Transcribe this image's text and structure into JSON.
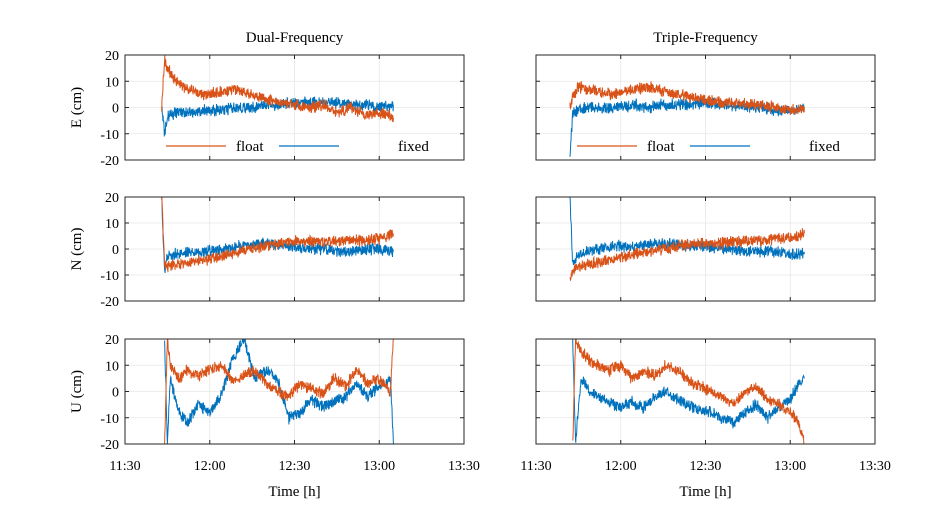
{
  "colors": {
    "float": "#D95319",
    "fixed": "#0072BD",
    "axis": "#262626",
    "grid": "#E6E6E6"
  },
  "chart_data": [
    {
      "type": "line",
      "panel": "dual-E",
      "title": "Dual-Frequency",
      "xlabel": "",
      "ylabel": "E (cm)",
      "xlim": [
        "11:30",
        "13:30"
      ],
      "ylim": [
        -20,
        20
      ],
      "xticks": [
        "11:30",
        "12:00",
        "12:30",
        "13:00",
        "13:30"
      ],
      "yticks": [
        "-20",
        "-10",
        "0",
        "10",
        "20"
      ],
      "grid": true,
      "legend": "bottom",
      "series": [
        {
          "name": "float",
          "x": [
            "11:43",
            "11:44",
            "11:45",
            "11:48",
            "11:52",
            "11:58",
            "12:05",
            "12:10",
            "12:15",
            "12:20",
            "12:25",
            "12:30",
            "12:35",
            "12:40",
            "12:45",
            "12:50",
            "12:55",
            "13:00",
            "13:05"
          ],
          "y": [
            0,
            18,
            15,
            10,
            7,
            5,
            6,
            7,
            5,
            3,
            2,
            1,
            0,
            1,
            -2,
            0,
            -3,
            -2,
            -4
          ]
        },
        {
          "name": "fixed",
          "x": [
            "11:43",
            "11:44",
            "11:45",
            "11:48",
            "11:52",
            "11:58",
            "12:05",
            "12:10",
            "12:15",
            "12:20",
            "12:25",
            "12:30",
            "12:35",
            "12:40",
            "12:45",
            "12:50",
            "12:55",
            "13:00",
            "13:05"
          ],
          "y": [
            0,
            -10,
            -3,
            -2,
            -2,
            -1,
            -1,
            0,
            0,
            1,
            1,
            2,
            2,
            2,
            2,
            1,
            1,
            0,
            1
          ]
        }
      ]
    },
    {
      "type": "line",
      "panel": "triple-E",
      "title": "Triple-Frequency",
      "xlabel": "",
      "ylabel": "",
      "xlim": [
        "11:30",
        "13:30"
      ],
      "ylim": [
        -20,
        20
      ],
      "xticks": [
        "11:30",
        "12:00",
        "12:30",
        "13:00",
        "13:30"
      ],
      "yticks": [],
      "grid": true,
      "legend": "bottom",
      "series": [
        {
          "name": "float",
          "x": [
            "11:42",
            "11:43",
            "11:45",
            "11:48",
            "11:52",
            "11:58",
            "12:05",
            "12:10",
            "12:15",
            "12:20",
            "12:25",
            "12:30",
            "12:35",
            "12:40",
            "12:45",
            "12:50",
            "12:55",
            "13:00",
            "13:05"
          ],
          "y": [
            0,
            4,
            8,
            7,
            6,
            5,
            7,
            8,
            6,
            5,
            4,
            3,
            2,
            2,
            1,
            1,
            0,
            -1,
            0
          ]
        },
        {
          "name": "fixed",
          "x": [
            "11:42",
            "11:43",
            "11:45",
            "11:48",
            "11:52",
            "11:58",
            "12:05",
            "12:10",
            "12:15",
            "12:20",
            "12:25",
            "12:30",
            "12:35",
            "12:40",
            "12:45",
            "12:50",
            "12:55",
            "13:00",
            "13:05"
          ],
          "y": [
            -20,
            -2,
            -1,
            0,
            0,
            0,
            1,
            0,
            1,
            1,
            1,
            2,
            1,
            1,
            0,
            0,
            -1,
            -1,
            0
          ]
        }
      ]
    },
    {
      "type": "line",
      "panel": "dual-N",
      "title": "",
      "xlabel": "",
      "ylabel": "N (cm)",
      "xlim": [
        "11:30",
        "13:30"
      ],
      "ylim": [
        -20,
        20
      ],
      "xticks": [
        "11:30",
        "12:00",
        "12:30",
        "13:00",
        "13:30"
      ],
      "yticks": [
        "-20",
        "-10",
        "0",
        "10",
        "20"
      ],
      "grid": true,
      "series": [
        {
          "name": "float",
          "x": [
            "11:43",
            "11:44",
            "11:45",
            "11:48",
            "11:52",
            "11:58",
            "12:05",
            "12:10",
            "12:15",
            "12:20",
            "12:25",
            "12:30",
            "12:35",
            "12:40",
            "12:45",
            "12:50",
            "12:55",
            "13:00",
            "13:05"
          ],
          "y": [
            20,
            -6,
            -7,
            -6,
            -5,
            -4,
            -3,
            -1,
            0,
            1,
            2,
            3,
            3,
            3,
            3,
            4,
            3,
            4,
            6
          ]
        },
        {
          "name": "fixed",
          "x": [
            "11:43",
            "11:44",
            "11:45",
            "11:48",
            "11:52",
            "11:58",
            "12:05",
            "12:10",
            "12:15",
            "12:20",
            "12:25",
            "12:30",
            "12:35",
            "12:40",
            "12:45",
            "12:50",
            "12:55",
            "13:00",
            "13:05"
          ],
          "y": [
            20,
            -8,
            -3,
            -2,
            -1,
            -1,
            0,
            1,
            2,
            2,
            1,
            1,
            0,
            0,
            -1,
            -1,
            0,
            0,
            -1
          ]
        }
      ]
    },
    {
      "type": "line",
      "panel": "triple-N",
      "title": "",
      "xlabel": "",
      "ylabel": "",
      "xlim": [
        "11:30",
        "13:30"
      ],
      "ylim": [
        -20,
        20
      ],
      "xticks": [
        "11:30",
        "12:00",
        "12:30",
        "13:00",
        "13:30"
      ],
      "yticks": [],
      "grid": true,
      "series": [
        {
          "name": "float",
          "x": [
            "11:42",
            "11:43",
            "11:45",
            "11:48",
            "11:52",
            "11:58",
            "12:05",
            "12:10",
            "12:15",
            "12:20",
            "12:25",
            "12:30",
            "12:35",
            "12:40",
            "12:45",
            "12:50",
            "12:55",
            "13:00",
            "13:05"
          ],
          "y": [
            -12,
            -8,
            -7,
            -6,
            -5,
            -4,
            -2,
            -1,
            0,
            1,
            2,
            2,
            2,
            3,
            3,
            3,
            4,
            4,
            6
          ]
        },
        {
          "name": "fixed",
          "x": [
            "11:42",
            "11:43",
            "11:45",
            "11:48",
            "11:52",
            "11:58",
            "12:05",
            "12:10",
            "12:15",
            "12:20",
            "12:25",
            "12:30",
            "12:35",
            "12:40",
            "12:45",
            "12:50",
            "12:55",
            "13:00",
            "13:05"
          ],
          "y": [
            20,
            -6,
            -2,
            -1,
            0,
            1,
            1,
            2,
            2,
            2,
            1,
            1,
            0,
            0,
            -1,
            -1,
            -1,
            -2,
            -2
          ]
        }
      ]
    },
    {
      "type": "line",
      "panel": "dual-U",
      "title": "",
      "xlabel": "Time [h]",
      "ylabel": "U (cm)",
      "xlim": [
        "11:30",
        "13:30"
      ],
      "ylim": [
        -20,
        20
      ],
      "xticks": [
        "11:30",
        "12:00",
        "12:30",
        "13:00",
        "13:30"
      ],
      "yticks": [
        "-20",
        "-10",
        "0",
        "10",
        "20"
      ],
      "grid": true,
      "series": [
        {
          "name": "float",
          "x": [
            "11:44",
            "11:45",
            "11:46",
            "11:49",
            "11:52",
            "11:56",
            "12:00",
            "12:04",
            "12:08",
            "12:12",
            "12:16",
            "12:20",
            "12:24",
            "12:28",
            "12:32",
            "12:36",
            "12:40",
            "12:44",
            "12:48",
            "12:52",
            "12:56",
            "13:00",
            "13:04",
            "13:05"
          ],
          "y": [
            -20,
            20,
            10,
            5,
            8,
            6,
            8,
            10,
            4,
            6,
            8,
            3,
            0,
            -2,
            3,
            1,
            -1,
            5,
            2,
            8,
            3,
            5,
            0,
            20
          ]
        },
        {
          "name": "fixed",
          "x": [
            "11:44",
            "11:45",
            "11:46",
            "11:49",
            "11:52",
            "11:56",
            "12:00",
            "12:04",
            "12:08",
            "12:12",
            "12:16",
            "12:20",
            "12:24",
            "12:28",
            "12:32",
            "12:36",
            "12:40",
            "12:44",
            "12:48",
            "12:52",
            "12:56",
            "13:00",
            "13:04",
            "13:05"
          ],
          "y": [
            20,
            -20,
            5,
            -8,
            -12,
            -5,
            -8,
            -2,
            12,
            20,
            5,
            8,
            5,
            -10,
            -8,
            -3,
            -6,
            -4,
            -2,
            3,
            -2,
            2,
            5,
            -20
          ]
        }
      ]
    },
    {
      "type": "line",
      "panel": "triple-U",
      "title": "",
      "xlabel": "Time [h]",
      "ylabel": "",
      "xlim": [
        "11:30",
        "13:30"
      ],
      "ylim": [
        -20,
        20
      ],
      "xticks": [
        "11:30",
        "12:00",
        "12:30",
        "13:00",
        "13:30"
      ],
      "yticks": [],
      "grid": true,
      "series": [
        {
          "name": "float",
          "x": [
            "11:43",
            "11:44",
            "11:46",
            "11:49",
            "11:52",
            "11:56",
            "12:00",
            "12:04",
            "12:08",
            "12:12",
            "12:16",
            "12:20",
            "12:24",
            "12:28",
            "12:32",
            "12:36",
            "12:40",
            "12:44",
            "12:48",
            "12:52",
            "12:56",
            "13:00",
            "13:03",
            "13:05"
          ],
          "y": [
            -20,
            20,
            15,
            12,
            10,
            8,
            10,
            5,
            8,
            6,
            10,
            8,
            4,
            2,
            0,
            -2,
            -5,
            0,
            2,
            -3,
            -5,
            -8,
            -12,
            -20
          ]
        },
        {
          "name": "fixed",
          "x": [
            "11:43",
            "11:44",
            "11:46",
            "11:49",
            "11:52",
            "11:56",
            "12:00",
            "12:04",
            "12:08",
            "12:12",
            "12:16",
            "12:20",
            "12:24",
            "12:28",
            "12:32",
            "12:36",
            "12:40",
            "12:44",
            "12:48",
            "12:52",
            "12:56",
            "13:00",
            "13:03",
            "13:05"
          ],
          "y": [
            20,
            -20,
            5,
            0,
            -2,
            -4,
            -6,
            -4,
            -6,
            -2,
            0,
            -3,
            -5,
            -7,
            -8,
            -10,
            -12,
            -8,
            -5,
            -10,
            -6,
            -3,
            3,
            5
          ]
        }
      ]
    }
  ]
}
